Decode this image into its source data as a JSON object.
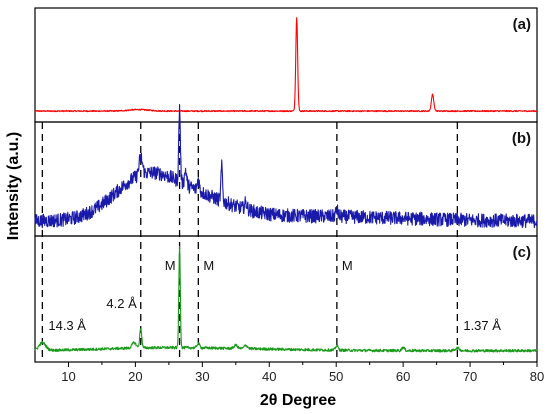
{
  "chart_data": {
    "type": "line",
    "xlabel": "2θ Degree",
    "ylabel": "Intensity (a.u.)",
    "xlim": [
      5,
      80
    ],
    "x_ticks": [
      10,
      20,
      30,
      40,
      50,
      60,
      70,
      80
    ],
    "grid": false,
    "series": [
      {
        "name": "(a)",
        "color": "#ff0000",
        "baseline": 0.03,
        "noise": 0.006,
        "humps": [],
        "peaks": [
          {
            "x": 20.5,
            "h": 0.015,
            "w": 1.5
          },
          {
            "x": 44.1,
            "h": 0.95,
            "w": 0.14
          },
          {
            "x": 64.4,
            "h": 0.17,
            "w": 0.18
          }
        ]
      },
      {
        "name": "(b)",
        "color": "#1a1aaa",
        "baseline": 0.07,
        "noise": 0.07,
        "humps": [
          {
            "x": 21.0,
            "h": 0.38,
            "w": 4.5
          },
          {
            "x": 28.5,
            "h": 0.22,
            "w": 5.5
          },
          {
            "x": 45.0,
            "h": 0.05,
            "w": 14.0
          }
        ],
        "peaks": [
          {
            "x": 20.8,
            "h": 0.18,
            "w": 0.25
          },
          {
            "x": 26.6,
            "h": 0.75,
            "w": 0.12
          },
          {
            "x": 27.5,
            "h": 0.15,
            "w": 0.15
          },
          {
            "x": 29.4,
            "h": 0.12,
            "w": 0.15
          },
          {
            "x": 32.9,
            "h": 0.35,
            "w": 0.12
          },
          {
            "x": 36.5,
            "h": 0.07,
            "w": 0.2
          },
          {
            "x": 50.1,
            "h": 0.06,
            "w": 0.2
          }
        ]
      },
      {
        "name": "(c)",
        "color": "#1a9a1a",
        "baseline": 0.03,
        "noise": 0.012,
        "humps": [
          {
            "x": 22.0,
            "h": 0.02,
            "w": 8.0
          },
          {
            "x": 35.0,
            "h": 0.015,
            "w": 10.0
          }
        ],
        "peaks": [
          {
            "x": 6.1,
            "h": 0.07,
            "w": 0.5
          },
          {
            "x": 19.8,
            "h": 0.05,
            "w": 0.3
          },
          {
            "x": 20.8,
            "h": 0.18,
            "w": 0.15
          },
          {
            "x": 26.6,
            "h": 0.93,
            "w": 0.11
          },
          {
            "x": 29.4,
            "h": 0.04,
            "w": 0.2
          },
          {
            "x": 35.0,
            "h": 0.03,
            "w": 0.25
          },
          {
            "x": 36.5,
            "h": 0.03,
            "w": 0.25
          },
          {
            "x": 50.1,
            "h": 0.04,
            "w": 0.2
          },
          {
            "x": 60.0,
            "h": 0.03,
            "w": 0.2
          },
          {
            "x": 68.1,
            "h": 0.025,
            "w": 0.3
          }
        ]
      }
    ],
    "reference_lines": [
      6.1,
      20.8,
      26.6,
      29.4,
      50.1,
      68.1
    ],
    "annotations": [
      {
        "text": "14.3 Å",
        "x": 6.1,
        "panel": 2
      },
      {
        "text": "4.2 Å",
        "x": 20.8,
        "panel": 2
      },
      {
        "text": "M",
        "x": 26.6,
        "panel": 2
      },
      {
        "text": "M",
        "x": 29.4,
        "panel": 2
      },
      {
        "text": "M",
        "x": 50.1,
        "panel": 2
      },
      {
        "text": "1.37 Å",
        "x": 68.1,
        "panel": 2
      }
    ]
  }
}
